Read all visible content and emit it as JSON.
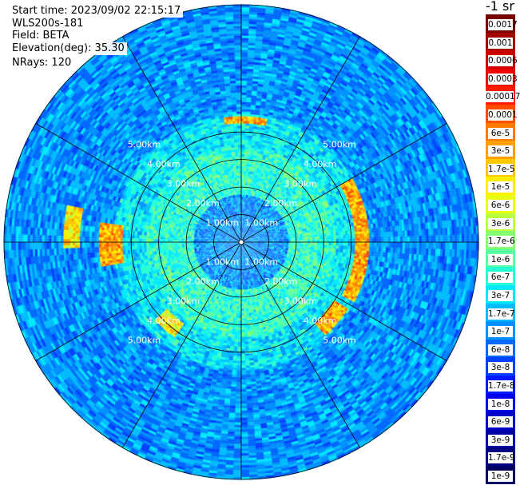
{
  "header": {
    "start_time": "Start time: 2023/09/02 22:15:17",
    "site": "WLS200s-181",
    "field": "Field: BETA",
    "elevation": "Elevation(deg): 35.30",
    "nrays": "NRays: 120"
  },
  "colorbar": {
    "unit_label": "-1 sr",
    "ticks": [
      "0.0017",
      "0.001",
      "0.0006",
      "0.0003",
      "0.00017",
      "0.0001",
      "6e-5",
      "3e-5",
      "1.7e-5",
      "1e-5",
      "6e-6",
      "3e-6",
      "1.7e-6",
      "1e-6",
      "6e-7",
      "3e-7",
      "1.7e-7",
      "1e-7",
      "6e-8",
      "3e-8",
      "1.7e-8",
      "1e-8",
      "6e-9",
      "3e-9",
      "1.7e-9",
      "1e-9"
    ],
    "colors": [
      "#7a0000",
      "#a30000",
      "#cc0000",
      "#ee0000",
      "#ff1a00",
      "#ff4d00",
      "#ff7a00",
      "#ffa000",
      "#ffc800",
      "#ffee00",
      "#e8ff10",
      "#b8ff40",
      "#86ff70",
      "#55ffa2",
      "#25ffd2",
      "#00e8ff",
      "#00bcff",
      "#0090ff",
      "#0068ff",
      "#0040ff",
      "#0018ff",
      "#0000ee",
      "#0000cc",
      "#0000a8",
      "#000085",
      "#000060"
    ]
  },
  "chart_data": {
    "type": "heatmap",
    "projection": "polar-ppi",
    "field": "BETA",
    "range_rings_km": [
      1,
      2,
      3,
      4,
      5
    ],
    "range_labels": [
      "1.00km",
      "2.00km",
      "3.00km",
      "4.00km",
      "5.00km"
    ],
    "max_range_km": 5.0,
    "n_rays": 120,
    "radial_spokes_deg": [
      0,
      30,
      60,
      90,
      120,
      150,
      180,
      210,
      240,
      270,
      300,
      330
    ],
    "colorscale": "log",
    "value_range": [
      1e-09,
      0.0017
    ],
    "background_levels": [
      {
        "range_km": [
          0.0,
          1.0
        ],
        "approx_value": 1e-07
      },
      {
        "range_km": [
          1.0,
          2.0
        ],
        "approx_value": 6e-07
      },
      {
        "range_km": [
          2.0,
          2.7
        ],
        "approx_value": 3e-07
      },
      {
        "range_km": [
          2.7,
          5.0
        ],
        "approx_value": 1e-07
      }
    ],
    "strong_echoes": [
      {
        "azimuth_deg": [
          -8,
          12
        ],
        "range_km": [
          2.5,
          2.65
        ],
        "approx_value": 3e-05
      },
      {
        "azimuth_deg": [
          60,
          118
        ],
        "range_km": [
          2.4,
          2.7
        ],
        "approx_value": 3e-05
      },
      {
        "azimuth_deg": [
          122,
          138
        ],
        "range_km": [
          2.3,
          2.65
        ],
        "approx_value": 3e-05
      },
      {
        "azimuth_deg": [
          215,
          228
        ],
        "range_km": [
          2.1,
          2.45
        ],
        "approx_value": 1e-05
      },
      {
        "azimuth_deg": [
          260,
          278
        ],
        "range_km": [
          2.5,
          3.0
        ],
        "approx_value": 3e-05
      },
      {
        "azimuth_deg": [
          268,
          282
        ],
        "range_km": [
          3.4,
          3.75
        ],
        "approx_value": 1e-05
      }
    ]
  }
}
